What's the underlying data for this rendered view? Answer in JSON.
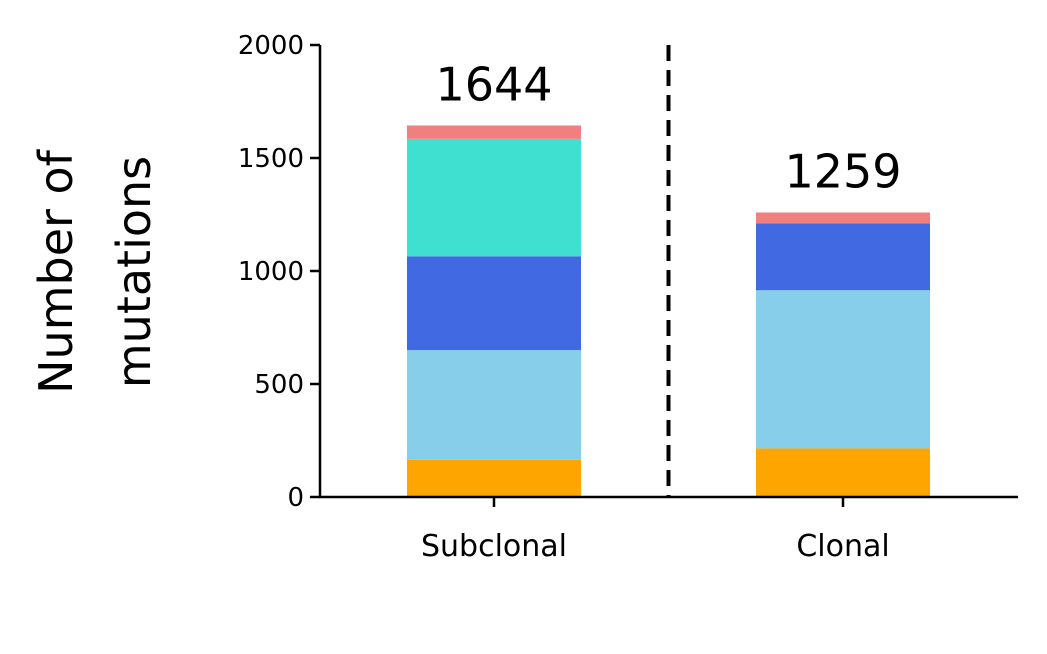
{
  "chart_data": {
    "type": "bar",
    "stacked": true,
    "title": "",
    "xlabel": "",
    "ylabel": [
      "Number of",
      "mutations"
    ],
    "ylim": [
      0,
      2000
    ],
    "yticks": [
      "0",
      "500",
      "1000",
      "1500",
      "2000"
    ],
    "grid": false,
    "categories": [
      "Subclonal",
      "Clonal"
    ],
    "totals": [
      "1644",
      "1259"
    ],
    "divider": "dashed",
    "series": [
      {
        "values": [
          165,
          215
        ],
        "color": "#FFA500"
      },
      {
        "values": [
          485,
          700
        ],
        "color": "#87CEEB"
      },
      {
        "values": [
          415,
          295
        ],
        "color": "#4169E1"
      },
      {
        "values": [
          520,
          0
        ],
        "color": "#40E0D0"
      },
      {
        "values": [
          59,
          49
        ],
        "color": "#F08080"
      }
    ]
  }
}
